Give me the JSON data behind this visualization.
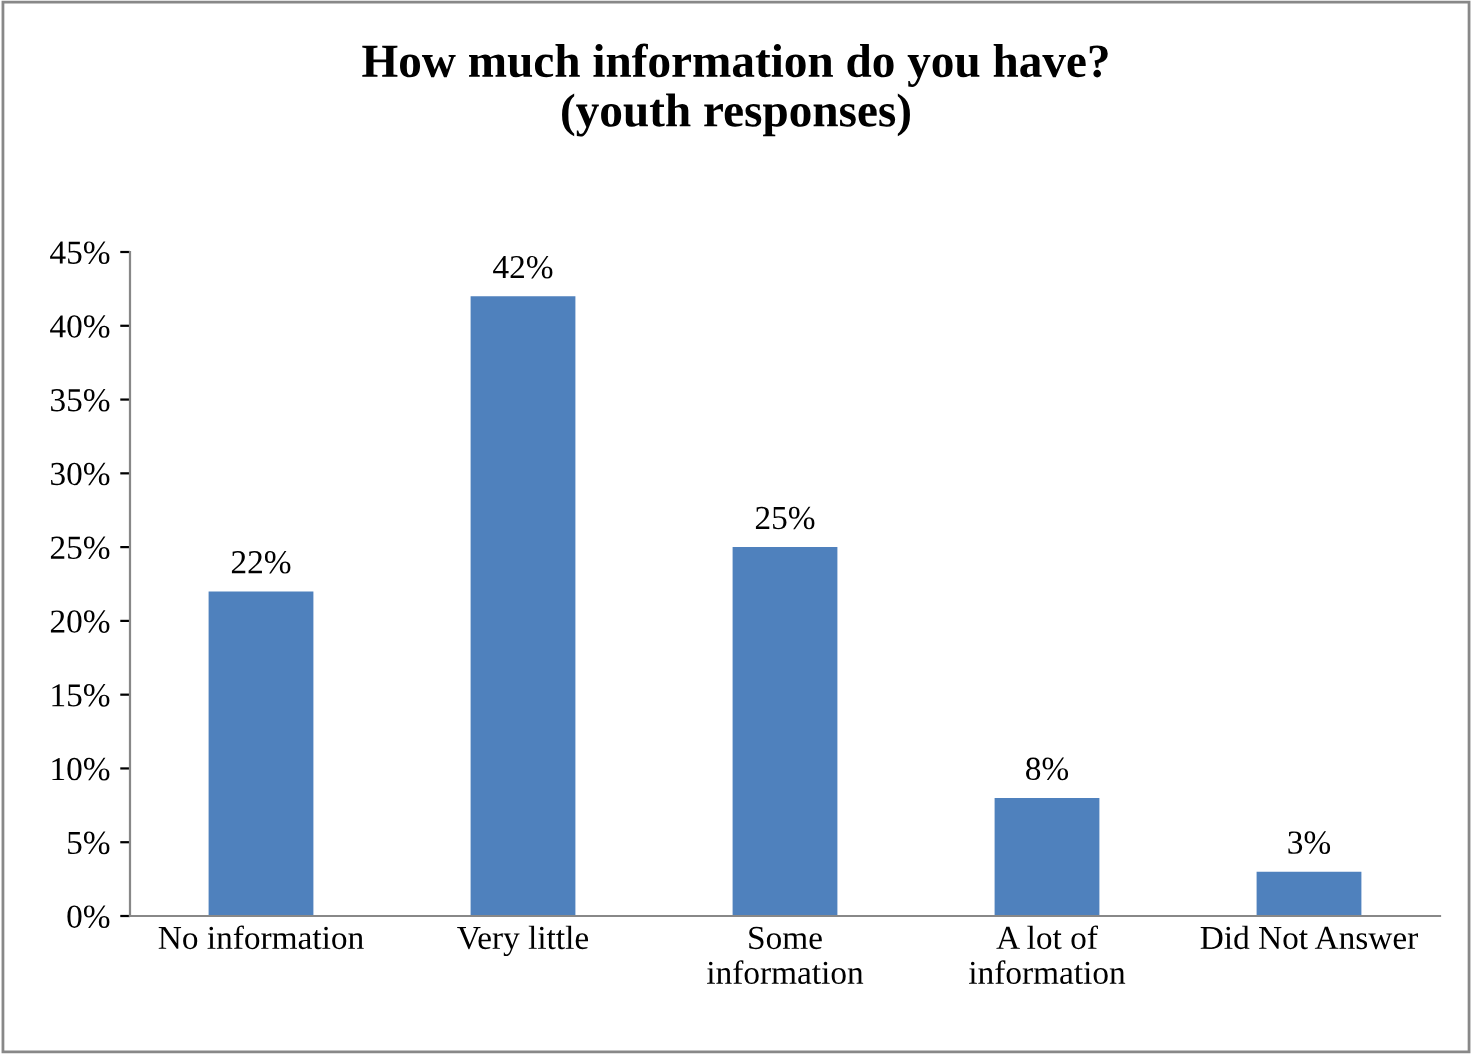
{
  "chart_data": {
    "type": "bar",
    "title": "How much information do you have?\n(youth responses)",
    "categories": [
      "No information",
      "Very little",
      "Some\ninformation",
      "A lot of\ninformation",
      "Did Not Answer"
    ],
    "values": [
      22,
      42,
      25,
      8,
      3
    ],
    "value_labels": [
      "22%",
      "42%",
      "25%",
      "8%",
      "3%"
    ],
    "color": "#4f81bd",
    "ylim": [
      0,
      45
    ],
    "yticks": [
      {
        "value": 0,
        "label": "0%"
      },
      {
        "value": 5,
        "label": "5%"
      },
      {
        "value": 10,
        "label": "10%"
      },
      {
        "value": 15,
        "label": "15%"
      },
      {
        "value": 20,
        "label": "20%"
      },
      {
        "value": 25,
        "label": "25%"
      },
      {
        "value": 30,
        "label": "30%"
      },
      {
        "value": 35,
        "label": "35%"
      },
      {
        "value": 40,
        "label": "40%"
      },
      {
        "value": 45,
        "label": "45%"
      }
    ],
    "grid": false,
    "legend": false
  }
}
